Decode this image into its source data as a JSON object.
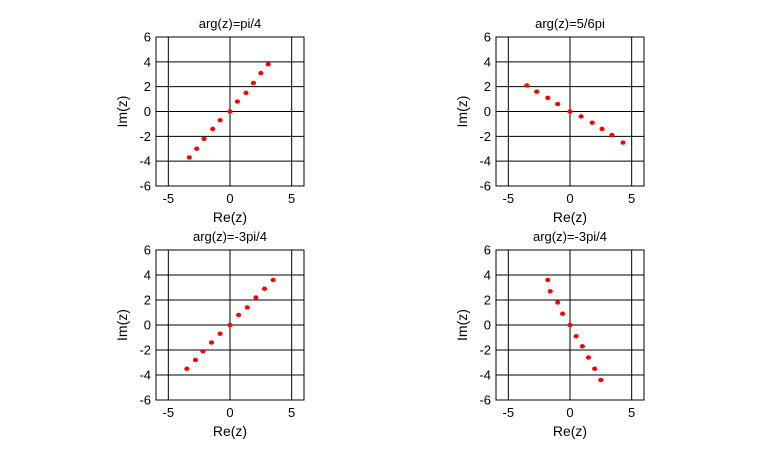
{
  "figure": {
    "background": "#ffffff",
    "point_color": "#ff0000",
    "axis_color": "#000000"
  },
  "chart_data": [
    {
      "type": "scatter",
      "title": "arg(z)=pi/4",
      "xlabel": "Re(z)",
      "ylabel": "Im(z)",
      "xlim": [
        -6,
        6
      ],
      "ylim": [
        -6,
        6
      ],
      "xticks": [
        -5,
        0,
        5
      ],
      "yticks": [
        -6,
        -4,
        -2,
        0,
        2,
        4,
        6
      ],
      "grid": true,
      "series": [
        {
          "color": "#ff0000",
          "x": [
            -3.3,
            -2.7,
            -2.1,
            -1.4,
            -0.8,
            0.0,
            0.6,
            1.3,
            1.9,
            2.5,
            3.1
          ],
          "y": [
            -3.7,
            -3.0,
            -2.2,
            -1.4,
            -0.7,
            0.0,
            0.8,
            1.5,
            2.3,
            3.1,
            3.8
          ]
        }
      ]
    },
    {
      "type": "scatter",
      "title": "arg(z)=5/6pi",
      "xlabel": "Re(z)",
      "ylabel": "Im(z)",
      "xlim": [
        -6,
        6
      ],
      "ylim": [
        -6,
        6
      ],
      "xticks": [
        -5,
        0,
        5
      ],
      "yticks": [
        -6,
        -4,
        -2,
        0,
        2,
        4,
        6
      ],
      "grid": true,
      "series": [
        {
          "color": "#ff0000",
          "x": [
            -3.5,
            -2.7,
            -1.8,
            -1.0,
            0.0,
            0.9,
            1.8,
            2.6,
            3.4,
            4.3
          ],
          "y": [
            2.1,
            1.6,
            1.1,
            0.6,
            0.0,
            -0.4,
            -0.9,
            -1.4,
            -1.9,
            -2.5
          ]
        }
      ]
    },
    {
      "type": "scatter",
      "title": "arg(z)=-3pi/4",
      "xlabel": "Re(z)",
      "ylabel": "Im(z)",
      "xlim": [
        -6,
        6
      ],
      "ylim": [
        -6,
        6
      ],
      "xticks": [
        -5,
        0,
        5
      ],
      "yticks": [
        -6,
        -4,
        -2,
        0,
        2,
        4,
        6
      ],
      "grid": true,
      "series": [
        {
          "color": "#ff0000",
          "x": [
            -3.5,
            -2.8,
            -2.2,
            -1.5,
            -0.8,
            0.0,
            0.7,
            1.4,
            2.1,
            2.8,
            3.5
          ],
          "y": [
            -3.5,
            -2.8,
            -2.1,
            -1.4,
            -0.7,
            0.0,
            0.8,
            1.4,
            2.2,
            2.9,
            3.6
          ]
        }
      ]
    },
    {
      "type": "scatter",
      "title": "arg(z)=-3pi/4",
      "xlabel": "Re(z)",
      "ylabel": "Im(z)",
      "xlim": [
        -6,
        6
      ],
      "ylim": [
        -6,
        6
      ],
      "xticks": [
        -5,
        0,
        5
      ],
      "yticks": [
        -6,
        -4,
        -2,
        0,
        2,
        4,
        6
      ],
      "grid": true,
      "series": [
        {
          "color": "#ff0000",
          "x": [
            -1.8,
            -1.6,
            -1.0,
            -0.6,
            0.0,
            0.5,
            1.0,
            1.5,
            2.0,
            2.5
          ],
          "y": [
            3.6,
            2.7,
            1.8,
            0.9,
            0.0,
            -0.9,
            -1.7,
            -2.6,
            -3.5,
            -4.4
          ]
        }
      ]
    }
  ]
}
